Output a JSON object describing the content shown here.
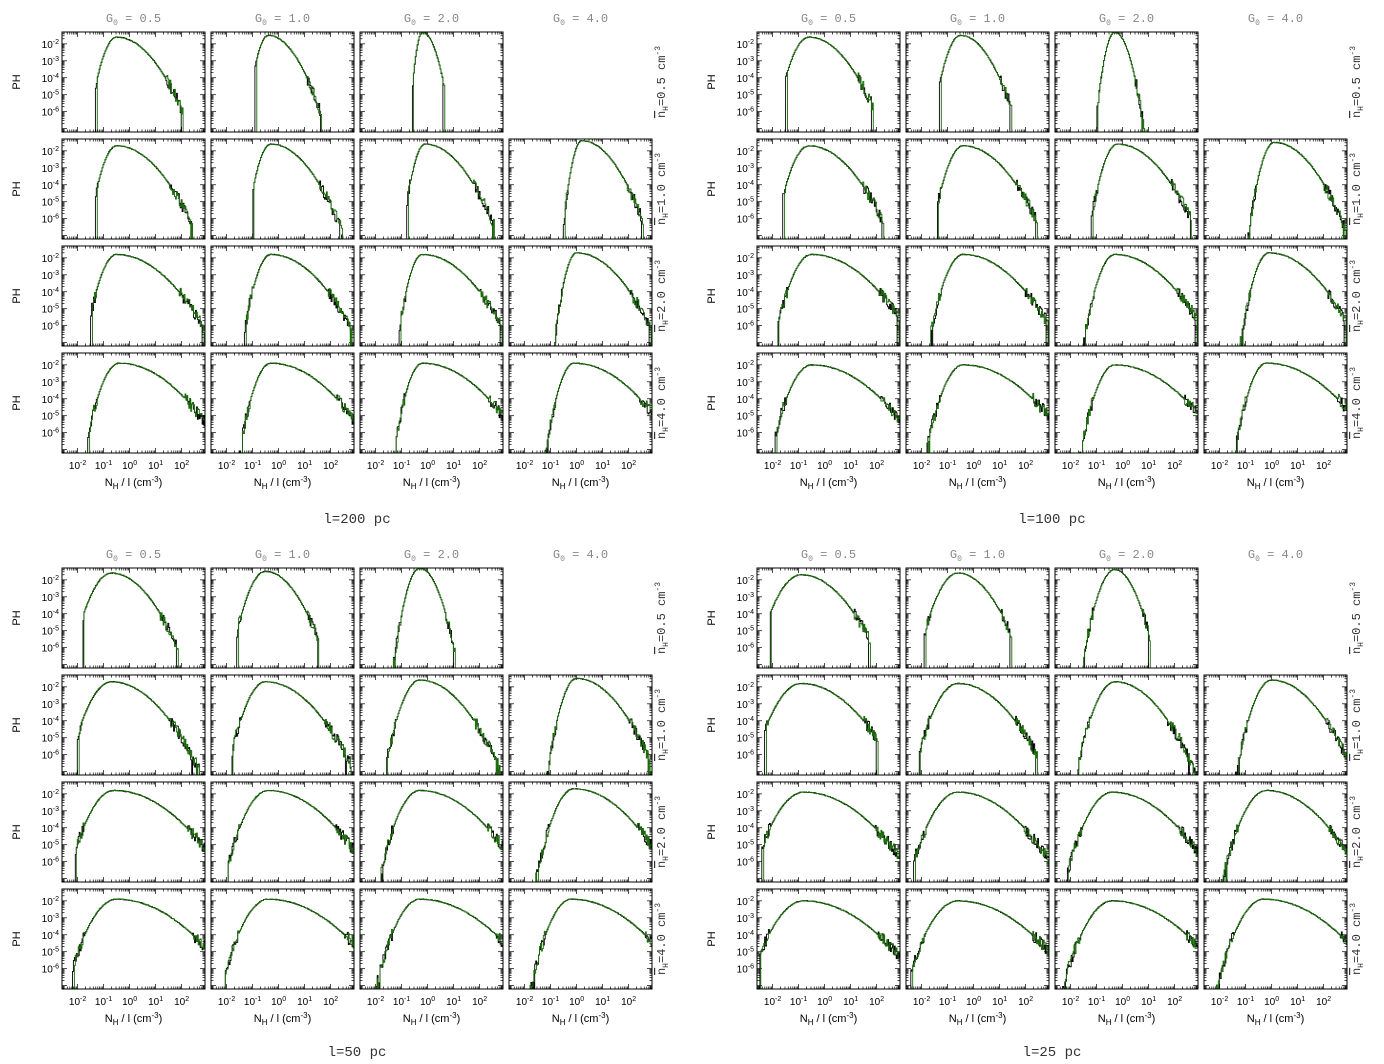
{
  "labels": {
    "ylabel": "PH",
    "xlabel_main": "N",
    "xlabel_sub": "H",
    "xlabel_rest": " / l (cm",
    "xlabel_exp": "-3",
    "xlabel_close": ")",
    "col_prefix": "G",
    "col_sub": "0",
    "row_prefix": "n",
    "row_sub": "H",
    "row_unit": "cm",
    "row_exp": "-3"
  },
  "colors": {
    "series_a": "#000000",
    "series_b": "#1a6b0a",
    "frame": "#000000",
    "header_text": "#888888"
  },
  "x_ticks": [
    {
      "base": "10",
      "exp": "-2",
      "v": -2
    },
    {
      "base": "10",
      "exp": "-1",
      "v": -1
    },
    {
      "base": "10",
      "exp": "0",
      "v": 0
    },
    {
      "base": "10",
      "exp": "1",
      "v": 1
    },
    {
      "base": "10",
      "exp": "2",
      "v": 2
    }
  ],
  "y_ticks": [
    {
      "base": "10",
      "exp": "-2",
      "v": -2
    },
    {
      "base": "10",
      "exp": "-3",
      "v": -3
    },
    {
      "base": "10",
      "exp": "-4",
      "v": -4
    },
    {
      "base": "10",
      "exp": "-5",
      "v": -5
    },
    {
      "base": "10",
      "exp": "-6",
      "v": -6
    }
  ],
  "chart_data": [
    {
      "type": "line",
      "title": "l=200 pc",
      "columns": [
        "= 0.5",
        "= 1.0",
        "= 2.0",
        "= 4.0"
      ],
      "rows": [
        "=0.5",
        "=1.0",
        "=2.0",
        "=4.0"
      ],
      "x_scale": "log",
      "y_scale": "log",
      "xlim_log10": [
        -2.6,
        2.9
      ],
      "ylim_log10": [
        -7.2,
        -1.3
      ],
      "missing_panel": {
        "row": 0,
        "col": 3
      },
      "panels": [
        {
          "row": 0,
          "col": 0,
          "peak_x": -0.5,
          "width_left": 0.45,
          "width_right": 0.9,
          "cut_x": -1.3,
          "tail_x": 2.0,
          "peak_y": -1.6
        },
        {
          "row": 0,
          "col": 1,
          "peak_x": -0.4,
          "width_left": 0.35,
          "width_right": 0.7,
          "cut_x": -0.9,
          "tail_x": 1.6,
          "peak_y": -1.5
        },
        {
          "row": 0,
          "col": 2,
          "peak_x": -0.2,
          "width_left": 0.2,
          "width_right": 0.35,
          "cut_x": -0.6,
          "tail_x": 0.6,
          "peak_y": -1.3
        },
        {
          "row": 1,
          "col": 0,
          "peak_x": -0.5,
          "width_left": 0.45,
          "width_right": 1.0,
          "cut_x": -1.3,
          "tail_x": 2.4,
          "peak_y": -1.7
        },
        {
          "row": 1,
          "col": 1,
          "peak_x": -0.3,
          "width_left": 0.4,
          "width_right": 0.9,
          "cut_x": -1.0,
          "tail_x": 2.5,
          "peak_y": -1.6
        },
        {
          "row": 1,
          "col": 2,
          "peak_x": -0.1,
          "width_left": 0.35,
          "width_right": 0.9,
          "cut_x": -0.8,
          "tail_x": 2.5,
          "peak_y": -1.6
        },
        {
          "row": 1,
          "col": 3,
          "peak_x": 0.2,
          "width_left": 0.3,
          "width_right": 0.8,
          "cut_x": -0.5,
          "tail_x": 2.5,
          "peak_y": -1.4
        },
        {
          "row": 2,
          "col": 0,
          "peak_x": -0.5,
          "width_left": 0.5,
          "width_right": 1.2,
          "cut_x": -1.5,
          "tail_x": 2.8,
          "peak_y": -1.8
        },
        {
          "row": 2,
          "col": 1,
          "peak_x": -0.3,
          "width_left": 0.45,
          "width_right": 1.1,
          "cut_x": -1.3,
          "tail_x": 2.8,
          "peak_y": -1.8
        },
        {
          "row": 2,
          "col": 2,
          "peak_x": -0.2,
          "width_left": 0.4,
          "width_right": 1.1,
          "cut_x": -1.1,
          "tail_x": 2.8,
          "peak_y": -1.8
        },
        {
          "row": 2,
          "col": 3,
          "peak_x": 0.0,
          "width_left": 0.35,
          "width_right": 1.0,
          "cut_x": -0.9,
          "tail_x": 2.8,
          "peak_y": -1.7
        },
        {
          "row": 3,
          "col": 0,
          "peak_x": -0.4,
          "width_left": 0.55,
          "width_right": 1.3,
          "cut_x": -1.6,
          "tail_x": 2.9,
          "peak_y": -1.9
        },
        {
          "row": 3,
          "col": 1,
          "peak_x": -0.3,
          "width_left": 0.5,
          "width_right": 1.3,
          "cut_x": -1.5,
          "tail_x": 2.9,
          "peak_y": -1.9
        },
        {
          "row": 3,
          "col": 2,
          "peak_x": -0.2,
          "width_left": 0.45,
          "width_right": 1.3,
          "cut_x": -1.4,
          "tail_x": 2.9,
          "peak_y": -1.9
        },
        {
          "row": 3,
          "col": 3,
          "peak_x": -0.1,
          "width_left": 0.45,
          "width_right": 1.3,
          "cut_x": -1.4,
          "tail_x": 2.9,
          "peak_y": -1.9
        }
      ]
    },
    {
      "type": "line",
      "title": "l=100 pc",
      "columns": [
        "= 0.5",
        "= 1.0",
        "= 2.0",
        "= 4.0"
      ],
      "rows": [
        "=0.5",
        "=1.0",
        "=2.0",
        "=4.0"
      ],
      "x_scale": "log",
      "y_scale": "log",
      "xlim_log10": [
        -2.6,
        2.9
      ],
      "ylim_log10": [
        -7.2,
        -1.3
      ],
      "missing_panel": {
        "row": 0,
        "col": 3
      },
      "panels": [
        {
          "row": 0,
          "col": 0,
          "peak_x": -0.6,
          "width_left": 0.55,
          "width_right": 0.9,
          "cut_x": -1.5,
          "tail_x": 1.8,
          "peak_y": -1.6
        },
        {
          "row": 0,
          "col": 1,
          "peak_x": -0.5,
          "width_left": 0.45,
          "width_right": 0.7,
          "cut_x": -1.3,
          "tail_x": 1.4,
          "peak_y": -1.5
        },
        {
          "row": 0,
          "col": 2,
          "peak_x": -0.3,
          "width_left": 0.3,
          "width_right": 0.35,
          "cut_x": -1.0,
          "tail_x": 0.8,
          "peak_y": -1.3
        },
        {
          "row": 1,
          "col": 0,
          "peak_x": -0.6,
          "width_left": 0.55,
          "width_right": 1.0,
          "cut_x": -1.6,
          "tail_x": 2.2,
          "peak_y": -1.7
        },
        {
          "row": 1,
          "col": 1,
          "peak_x": -0.4,
          "width_left": 0.5,
          "width_right": 1.0,
          "cut_x": -1.4,
          "tail_x": 2.4,
          "peak_y": -1.7
        },
        {
          "row": 1,
          "col": 2,
          "peak_x": -0.2,
          "width_left": 0.45,
          "width_right": 1.0,
          "cut_x": -1.2,
          "tail_x": 2.6,
          "peak_y": -1.6
        },
        {
          "row": 1,
          "col": 3,
          "peak_x": 0.1,
          "width_left": 0.4,
          "width_right": 0.9,
          "cut_x": -1.0,
          "tail_x": 2.8,
          "peak_y": -1.5
        },
        {
          "row": 2,
          "col": 0,
          "peak_x": -0.5,
          "width_left": 0.6,
          "width_right": 1.3,
          "cut_x": -1.8,
          "tail_x": 2.8,
          "peak_y": -1.8
        },
        {
          "row": 2,
          "col": 1,
          "peak_x": -0.4,
          "width_left": 0.55,
          "width_right": 1.2,
          "cut_x": -1.7,
          "tail_x": 2.8,
          "peak_y": -1.8
        },
        {
          "row": 2,
          "col": 2,
          "peak_x": -0.3,
          "width_left": 0.5,
          "width_right": 1.2,
          "cut_x": -1.5,
          "tail_x": 2.8,
          "peak_y": -1.8
        },
        {
          "row": 2,
          "col": 3,
          "peak_x": -0.1,
          "width_left": 0.45,
          "width_right": 1.1,
          "cut_x": -1.3,
          "tail_x": 2.8,
          "peak_y": -1.7
        },
        {
          "row": 3,
          "col": 0,
          "peak_x": -0.5,
          "width_left": 0.65,
          "width_right": 1.4,
          "cut_x": -1.9,
          "tail_x": 2.9,
          "peak_y": -2.0
        },
        {
          "row": 3,
          "col": 1,
          "peak_x": -0.4,
          "width_left": 0.6,
          "width_right": 1.4,
          "cut_x": -1.8,
          "tail_x": 2.9,
          "peak_y": -2.0
        },
        {
          "row": 3,
          "col": 2,
          "peak_x": -0.3,
          "width_left": 0.55,
          "width_right": 1.4,
          "cut_x": -1.7,
          "tail_x": 2.9,
          "peak_y": -2.0
        },
        {
          "row": 3,
          "col": 3,
          "peak_x": -0.2,
          "width_left": 0.5,
          "width_right": 1.4,
          "cut_x": -1.6,
          "tail_x": 2.9,
          "peak_y": -1.9
        }
      ]
    },
    {
      "type": "line",
      "title": "l=50 pc",
      "columns": [
        "= 0.5",
        "= 1.0",
        "= 2.0",
        "= 4.0"
      ],
      "rows": [
        "=0.5",
        "=1.0",
        "=2.0",
        "=4.0"
      ],
      "x_scale": "log",
      "y_scale": "log",
      "xlim_log10": [
        -2.6,
        2.9
      ],
      "ylim_log10": [
        -7.2,
        -1.3
      ],
      "missing_panel": {
        "row": 0,
        "col": 3
      },
      "panels": [
        {
          "row": 0,
          "col": 0,
          "peak_x": -0.7,
          "width_left": 0.65,
          "width_right": 0.9,
          "cut_x": -1.8,
          "tail_x": 1.8,
          "peak_y": -1.6
        },
        {
          "row": 0,
          "col": 1,
          "peak_x": -0.5,
          "width_left": 0.55,
          "width_right": 0.75,
          "cut_x": -1.6,
          "tail_x": 1.5,
          "peak_y": -1.5
        },
        {
          "row": 0,
          "col": 2,
          "peak_x": -0.3,
          "width_left": 0.4,
          "width_right": 0.45,
          "cut_x": -1.4,
          "tail_x": 1.0,
          "peak_y": -1.3
        },
        {
          "row": 1,
          "col": 0,
          "peak_x": -0.7,
          "width_left": 0.7,
          "width_right": 1.1,
          "cut_x": -2.0,
          "tail_x": 2.8,
          "peak_y": -1.7
        },
        {
          "row": 1,
          "col": 1,
          "peak_x": -0.5,
          "width_left": 0.6,
          "width_right": 1.1,
          "cut_x": -1.8,
          "tail_x": 2.8,
          "peak_y": -1.7
        },
        {
          "row": 1,
          "col": 2,
          "peak_x": -0.3,
          "width_left": 0.55,
          "width_right": 1.0,
          "cut_x": -1.6,
          "tail_x": 2.8,
          "peak_y": -1.6
        },
        {
          "row": 1,
          "col": 3,
          "peak_x": 0.0,
          "width_left": 0.45,
          "width_right": 0.95,
          "cut_x": -1.3,
          "tail_x": 2.8,
          "peak_y": -1.5
        },
        {
          "row": 2,
          "col": 0,
          "peak_x": -0.6,
          "width_left": 0.75,
          "width_right": 1.4,
          "cut_x": -2.1,
          "tail_x": 2.9,
          "peak_y": -1.8
        },
        {
          "row": 2,
          "col": 1,
          "peak_x": -0.4,
          "width_left": 0.7,
          "width_right": 1.3,
          "cut_x": -2.0,
          "tail_x": 2.9,
          "peak_y": -1.8
        },
        {
          "row": 2,
          "col": 2,
          "peak_x": -0.3,
          "width_left": 0.65,
          "width_right": 1.3,
          "cut_x": -1.9,
          "tail_x": 2.9,
          "peak_y": -1.8
        },
        {
          "row": 2,
          "col": 3,
          "peak_x": -0.1,
          "width_left": 0.6,
          "width_right": 1.2,
          "cut_x": -1.7,
          "tail_x": 2.9,
          "peak_y": -1.7
        },
        {
          "row": 3,
          "col": 0,
          "peak_x": -0.5,
          "width_left": 0.8,
          "width_right": 1.5,
          "cut_x": -2.2,
          "tail_x": 2.9,
          "peak_y": -1.9
        },
        {
          "row": 3,
          "col": 1,
          "peak_x": -0.4,
          "width_left": 0.75,
          "width_right": 1.5,
          "cut_x": -2.1,
          "tail_x": 2.9,
          "peak_y": -1.9
        },
        {
          "row": 3,
          "col": 2,
          "peak_x": -0.3,
          "width_left": 0.7,
          "width_right": 1.5,
          "cut_x": -2.0,
          "tail_x": 2.9,
          "peak_y": -1.9
        },
        {
          "row": 3,
          "col": 3,
          "peak_x": -0.2,
          "width_left": 0.65,
          "width_right": 1.45,
          "cut_x": -1.9,
          "tail_x": 2.9,
          "peak_y": -1.9
        }
      ]
    },
    {
      "type": "line",
      "title": "l=25 pc",
      "columns": [
        "= 0.5",
        "= 1.0",
        "= 2.0",
        "= 4.0"
      ],
      "rows": [
        "=0.5",
        "=1.0",
        "=2.0",
        "=4.0"
      ],
      "x_scale": "log",
      "y_scale": "log",
      "xlim_log10": [
        -2.6,
        2.9
      ],
      "ylim_log10": [
        -7.2,
        -1.3
      ],
      "missing_panel": {
        "row": 0,
        "col": 3
      },
      "panels": [
        {
          "row": 0,
          "col": 0,
          "peak_x": -0.9,
          "width_left": 0.75,
          "width_right": 1.0,
          "cut_x": -2.1,
          "tail_x": 1.7,
          "peak_y": -1.7
        },
        {
          "row": 0,
          "col": 1,
          "peak_x": -0.6,
          "width_left": 0.65,
          "width_right": 0.8,
          "cut_x": -1.9,
          "tail_x": 1.4,
          "peak_y": -1.6
        },
        {
          "row": 0,
          "col": 2,
          "peak_x": -0.3,
          "width_left": 0.5,
          "width_right": 0.5,
          "cut_x": -1.6,
          "tail_x": 1.0,
          "peak_y": -1.4
        },
        {
          "row": 1,
          "col": 0,
          "peak_x": -0.9,
          "width_left": 0.8,
          "width_right": 1.2,
          "cut_x": -2.3,
          "tail_x": 2.0,
          "peak_y": -1.8
        },
        {
          "row": 1,
          "col": 1,
          "peak_x": -0.6,
          "width_left": 0.7,
          "width_right": 1.1,
          "cut_x": -2.1,
          "tail_x": 2.4,
          "peak_y": -1.8
        },
        {
          "row": 1,
          "col": 2,
          "peak_x": -0.3,
          "width_left": 0.6,
          "width_right": 1.0,
          "cut_x": -1.9,
          "tail_x": 2.8,
          "peak_y": -1.7
        },
        {
          "row": 1,
          "col": 3,
          "peak_x": 0.0,
          "width_left": 0.55,
          "width_right": 1.0,
          "cut_x": -1.7,
          "tail_x": 2.9,
          "peak_y": -1.6
        },
        {
          "row": 2,
          "col": 0,
          "peak_x": -0.8,
          "width_left": 0.85,
          "width_right": 1.4,
          "cut_x": -2.4,
          "tail_x": 2.9,
          "peak_y": -1.9
        },
        {
          "row": 2,
          "col": 1,
          "peak_x": -0.6,
          "width_left": 0.8,
          "width_right": 1.3,
          "cut_x": -2.3,
          "tail_x": 2.9,
          "peak_y": -1.9
        },
        {
          "row": 2,
          "col": 2,
          "peak_x": -0.4,
          "width_left": 0.75,
          "width_right": 1.3,
          "cut_x": -2.2,
          "tail_x": 2.9,
          "peak_y": -1.9
        },
        {
          "row": 2,
          "col": 3,
          "peak_x": -0.2,
          "width_left": 0.7,
          "width_right": 1.2,
          "cut_x": -2.0,
          "tail_x": 2.9,
          "peak_y": -1.8
        },
        {
          "row": 3,
          "col": 0,
          "peak_x": -0.8,
          "width_left": 0.9,
          "width_right": 1.5,
          "cut_x": -2.5,
          "tail_x": 2.9,
          "peak_y": -2.0
        },
        {
          "row": 3,
          "col": 1,
          "peak_x": -0.6,
          "width_left": 0.85,
          "width_right": 1.5,
          "cut_x": -2.4,
          "tail_x": 2.9,
          "peak_y": -2.0
        },
        {
          "row": 3,
          "col": 2,
          "peak_x": -0.4,
          "width_left": 0.8,
          "width_right": 1.5,
          "cut_x": -2.3,
          "tail_x": 2.9,
          "peak_y": -2.0
        },
        {
          "row": 3,
          "col": 3,
          "peak_x": -0.3,
          "width_left": 0.75,
          "width_right": 1.5,
          "cut_x": -2.2,
          "tail_x": 2.9,
          "peak_y": -1.9
        }
      ]
    }
  ]
}
